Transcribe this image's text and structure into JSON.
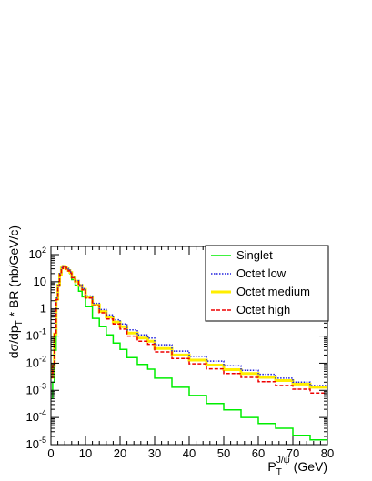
{
  "chart_data": {
    "type": "line",
    "step": true,
    "xlabel": {
      "base": "P",
      "sub": "T",
      "sup": "J/ψ",
      "suffix": " (GeV)"
    },
    "ylabel": {
      "pre": "dσ/dp",
      "sub": "T",
      "post": " * BR (nb/GeV/c)"
    },
    "xlim": [
      0,
      80
    ],
    "ylim": [
      1e-05,
      200
    ],
    "ylog": true,
    "grid": false,
    "legend_position": "top-right",
    "x_ticks": [
      0,
      10,
      20,
      30,
      40,
      50,
      60,
      70,
      80
    ],
    "y_ticks": [
      {
        "value": 100,
        "base": "10",
        "exp": "2"
      },
      {
        "value": 10,
        "base": "10",
        "exp": ""
      },
      {
        "value": 1,
        "base": "1",
        "exp": ""
      },
      {
        "value": 0.1,
        "base": "10",
        "exp": "-1"
      },
      {
        "value": 0.01,
        "base": "10",
        "exp": "-2"
      },
      {
        "value": 0.001,
        "base": "10",
        "exp": "-3"
      },
      {
        "value": 0.0001,
        "base": "10",
        "exp": "-4"
      },
      {
        "value": 1e-05,
        "base": "10",
        "exp": "-5"
      }
    ],
    "x": [
      0.5,
      1,
      1.5,
      2,
      2.5,
      3,
      3.5,
      4,
      4.5,
      5,
      5.5,
      6,
      7,
      8,
      9,
      10,
      12,
      14,
      16,
      18,
      20,
      22,
      25,
      28,
      30,
      35,
      40,
      45,
      50,
      55,
      60,
      65,
      70,
      75,
      80
    ],
    "series": [
      {
        "name": "Singlet",
        "color": "#00ee00",
        "dash": "solid",
        "values": [
          0.0005,
          0.002,
          0.03,
          2.5,
          7,
          18,
          32,
          38,
          36,
          30,
          25,
          20,
          12,
          7.5,
          4.5,
          2.8,
          1.2,
          0.45,
          0.22,
          0.11,
          0.055,
          0.032,
          0.016,
          0.009,
          0.006,
          0.0028,
          0.0013,
          0.00065,
          0.00033,
          0.00019,
          0.0001,
          6e-05,
          4e-05,
          2.2e-05,
          1.5e-05
        ]
      },
      {
        "name": "Octet low",
        "color": "#2222dd",
        "dash": "dotted",
        "values": [
          0.003,
          0.008,
          0.12,
          2.5,
          8,
          20,
          33,
          38,
          36,
          31,
          27,
          23,
          16,
          11,
          7.8,
          5.6,
          3,
          1.6,
          0.95,
          0.6,
          0.4,
          0.28,
          0.17,
          0.11,
          0.085,
          0.048,
          0.028,
          0.018,
          0.012,
          0.008,
          0.0055,
          0.0039,
          0.0028,
          0.002,
          0.0015
        ]
      },
      {
        "name": "Octet medium",
        "color": "#ffee00",
        "dash": "solid",
        "values": [
          0.003,
          0.008,
          0.12,
          2.3,
          7.5,
          19,
          32,
          37,
          35,
          30,
          26,
          22,
          15,
          10.5,
          7.3,
          5.2,
          2.7,
          1.4,
          0.8,
          0.5,
          0.33,
          0.22,
          0.13,
          0.085,
          0.065,
          0.035,
          0.02,
          0.013,
          0.0085,
          0.0058,
          0.0042,
          0.003,
          0.0023,
          0.0017,
          0.0013
        ]
      },
      {
        "name": "Octet high",
        "color": "#ee0000",
        "dash": "dashed",
        "values": [
          0.003,
          0.008,
          0.12,
          2.2,
          7,
          18,
          31,
          36,
          34,
          29,
          25,
          21,
          14,
          10,
          7,
          5,
          2.5,
          1.3,
          0.72,
          0.43,
          0.28,
          0.18,
          0.1,
          0.065,
          0.05,
          0.026,
          0.015,
          0.0095,
          0.0062,
          0.0042,
          0.003,
          0.0021,
          0.0015,
          0.0011,
          0.0008
        ]
      }
    ]
  }
}
